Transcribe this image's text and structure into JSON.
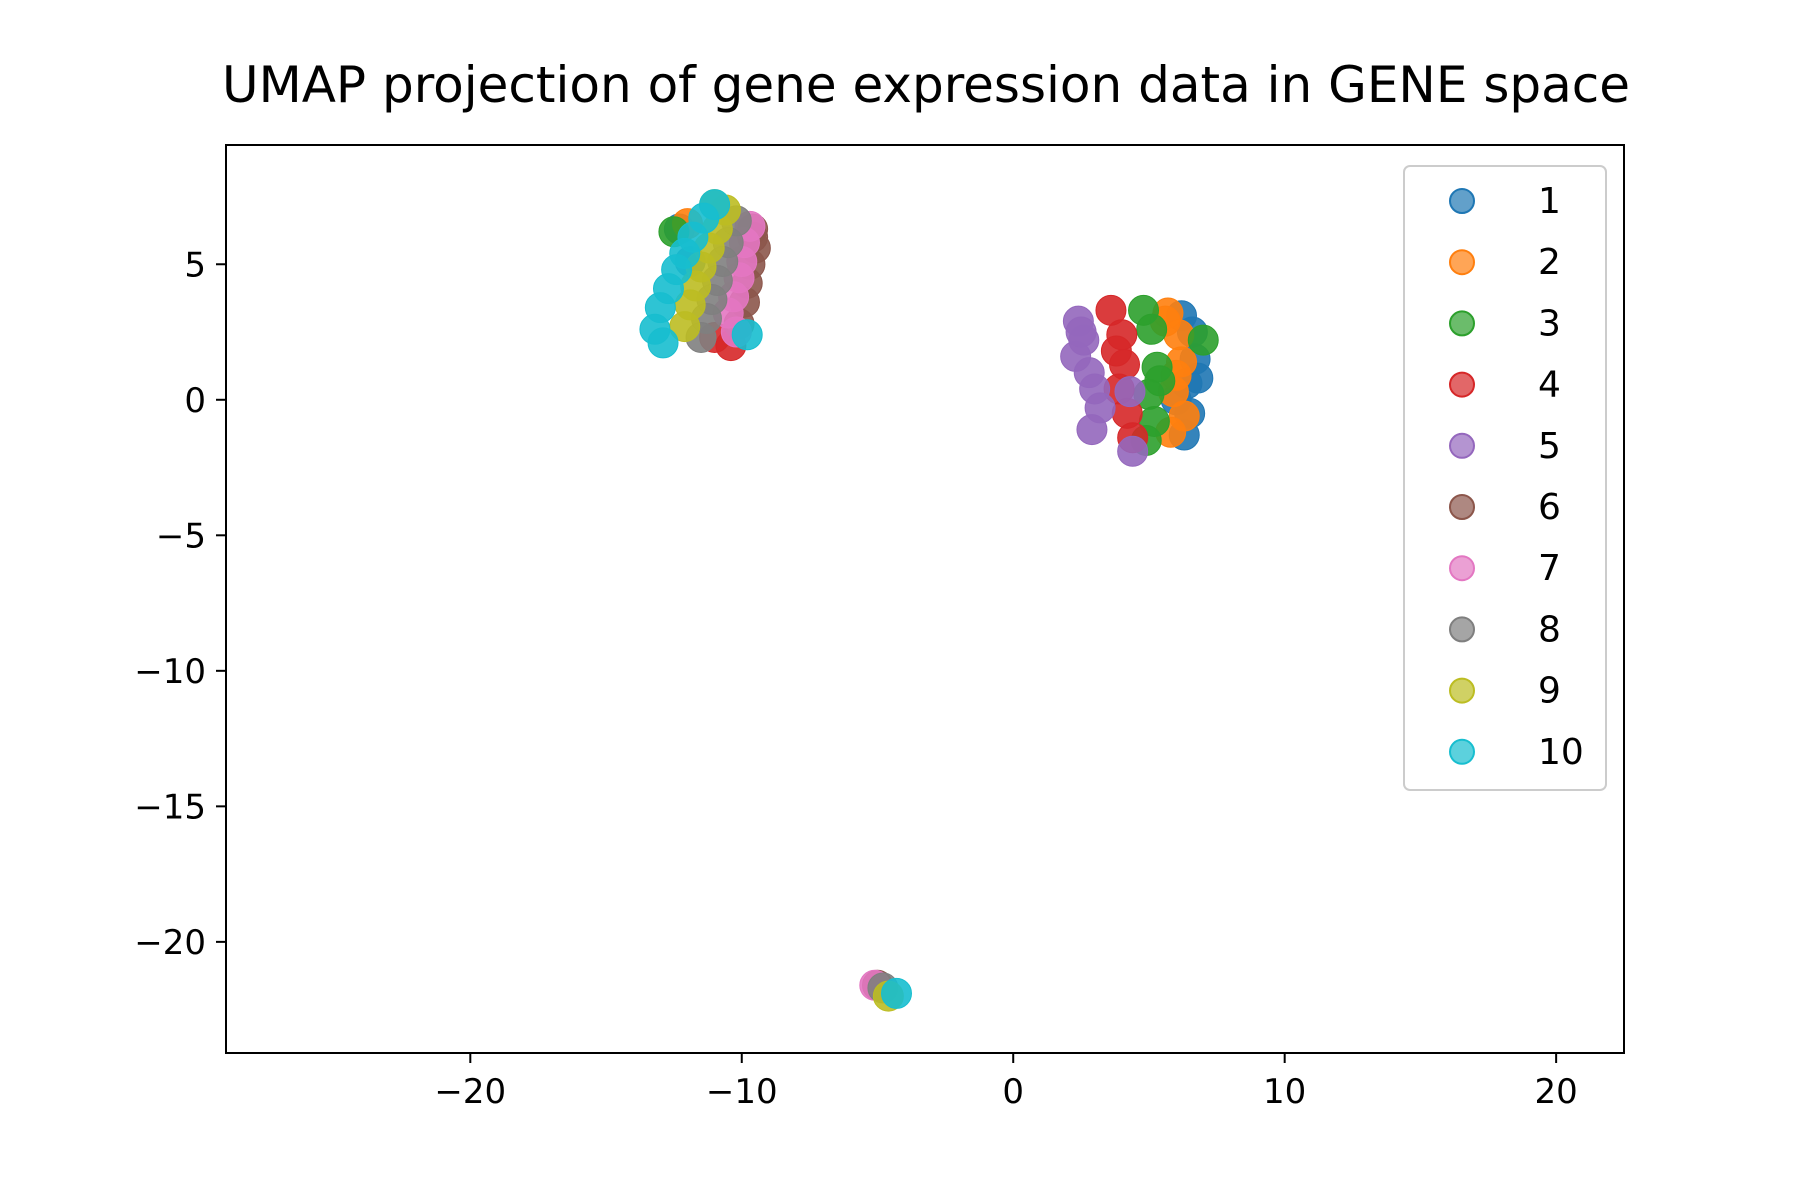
{
  "chart_data": {
    "type": "scatter",
    "title": "UMAP projection of gene expression data in GENE space",
    "xlabel": "",
    "ylabel": "",
    "xlim": [
      -29,
      22.5
    ],
    "ylim": [
      -24.1,
      9.4
    ],
    "xticks": [
      -20,
      -10,
      0,
      10,
      20
    ],
    "yticks": [
      5,
      0,
      -5,
      -10,
      -15,
      -20
    ],
    "xtick_labels": [
      "−20",
      "−10",
      "0",
      "10",
      "20"
    ],
    "ytick_labels": [
      "5",
      "0",
      "−5",
      "−10",
      "−15",
      "−20"
    ],
    "grid": false,
    "legend_position": "top-right",
    "series": [
      {
        "name": "1",
        "color": "#1f77b4",
        "clusters": [
          {
            "x": [
              6.2,
              6.6,
              6.7,
              6.4,
              6.0,
              6.5,
              6.8,
              6.3
            ],
            "y": [
              3.1,
              2.5,
              1.5,
              0.6,
              0.0,
              -0.5,
              0.8,
              -1.3
            ]
          },
          {
            "x": [
              -12.3,
              -11.9
            ],
            "y": [
              6.3,
              5.1
            ]
          }
        ]
      },
      {
        "name": "2",
        "color": "#ff7f0e",
        "clusters": [
          {
            "x": [
              5.7,
              6.1,
              6.2,
              5.9,
              6.3,
              5.8,
              6.0,
              5.6
            ],
            "y": [
              3.2,
              2.4,
              1.4,
              0.3,
              -0.6,
              -1.2,
              0.9,
              2.9
            ]
          },
          {
            "x": [
              -12.0
            ],
            "y": [
              6.5
            ]
          }
        ]
      },
      {
        "name": "3",
        "color": "#2ca02c",
        "clusters": [
          {
            "x": [
              4.8,
              5.1,
              5.3,
              5.0,
              5.2,
              4.9,
              7.0,
              5.4
            ],
            "y": [
              3.3,
              2.6,
              1.2,
              0.2,
              -0.8,
              -1.5,
              2.2,
              0.7
            ]
          },
          {
            "x": [
              -12.5
            ],
            "y": [
              6.2
            ]
          }
        ]
      },
      {
        "name": "4",
        "color": "#d62728",
        "clusters": [
          {
            "x": [
              3.6,
              4.0,
              4.1,
              3.9,
              4.2,
              4.4,
              3.8
            ],
            "y": [
              3.3,
              2.4,
              1.3,
              0.4,
              -0.5,
              -1.4,
              1.8
            ]
          },
          {
            "x": [
              -10.4,
              -11.0
            ],
            "y": [
              2.0,
              2.3
            ]
          }
        ]
      },
      {
        "name": "5",
        "color": "#9467bd",
        "clusters": [
          {
            "x": [
              2.4,
              2.6,
              2.3,
              2.8,
              3.0,
              3.2,
              2.9,
              4.3,
              4.4,
              2.5
            ],
            "y": [
              2.9,
              2.2,
              1.6,
              1.0,
              0.4,
              -0.3,
              -1.1,
              0.3,
              -1.9,
              2.5
            ]
          }
        ]
      },
      {
        "name": "6",
        "color": "#8c564b",
        "clusters": [
          {
            "x": [
              -9.6,
              -9.5,
              -9.7,
              -9.8,
              -9.9,
              -10.1,
              -9.6
            ],
            "y": [
              6.3,
              5.6,
              5.0,
              4.3,
              3.6,
              2.8,
              6.0
            ]
          },
          {
            "x": [
              -5.0
            ],
            "y": [
              -21.6
            ]
          }
        ]
      },
      {
        "name": "7",
        "color": "#e377c2",
        "clusters": [
          {
            "x": [
              -9.7,
              -9.9,
              -10.0,
              -10.1,
              -10.3,
              -10.5,
              -10.2
            ],
            "y": [
              6.4,
              5.8,
              5.1,
              4.5,
              3.8,
              3.2,
              2.5
            ]
          },
          {
            "x": [
              -5.1
            ],
            "y": [
              -21.6
            ]
          }
        ]
      },
      {
        "name": "8",
        "color": "#7f7f7f",
        "clusters": [
          {
            "x": [
              -10.2,
              -10.5,
              -10.7,
              -10.9,
              -11.1,
              -11.3,
              -11.5
            ],
            "y": [
              6.6,
              5.8,
              5.1,
              4.4,
              3.7,
              3.0,
              2.3
            ]
          },
          {
            "x": [
              -4.8
            ],
            "y": [
              -21.7
            ]
          }
        ]
      },
      {
        "name": "9",
        "color": "#bcbd22",
        "clusters": [
          {
            "x": [
              -10.6,
              -10.9,
              -11.2,
              -11.5,
              -11.7,
              -11.9,
              -12.1,
              -11.0
            ],
            "y": [
              7.0,
              6.3,
              5.6,
              4.9,
              4.2,
              3.5,
              2.7,
              7.2
            ]
          },
          {
            "x": [
              -4.6
            ],
            "y": [
              -22.0
            ]
          }
        ]
      },
      {
        "name": "10",
        "color": "#17becf",
        "clusters": [
          {
            "x": [
              -11.0,
              -11.4,
              -11.8,
              -12.1,
              -12.4,
              -12.7,
              -13.0,
              -13.2,
              -12.9,
              -9.8
            ],
            "y": [
              7.2,
              6.7,
              6.0,
              5.4,
              4.8,
              4.1,
              3.4,
              2.6,
              2.1,
              2.4
            ]
          },
          {
            "x": [
              -4.3
            ],
            "y": [
              -21.9
            ]
          }
        ]
      }
    ]
  }
}
